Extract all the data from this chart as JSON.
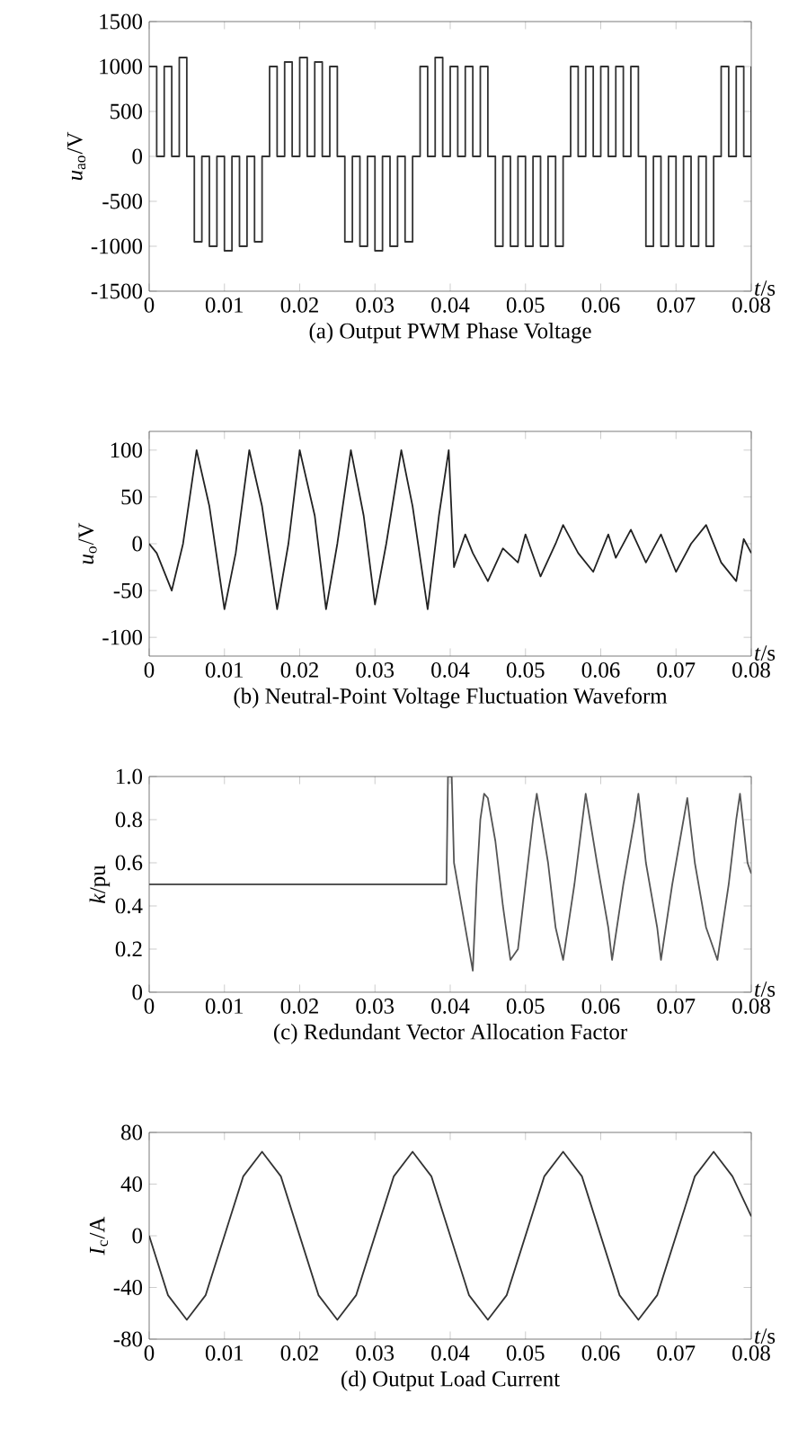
{
  "chart_data": [
    {
      "type": "step",
      "title": "(a) Output PWM Phase Voltage",
      "xlabel": "*t*/s",
      "ylabel": "*u*$_{ao}$/V",
      "color": "#333333",
      "marker": "none",
      "line_style": "solid",
      "xlim": [
        0,
        0.08
      ],
      "ylim": [
        -1500,
        1500
      ],
      "xticks": [
        0,
        0.01,
        0.02,
        0.03,
        0.04,
        0.05,
        0.06,
        0.07,
        0.08
      ],
      "yticks": [
        -1500,
        -1000,
        -500,
        0,
        500,
        1000,
        1500
      ],
      "x": [
        0,
        0.001,
        0.002,
        0.003,
        0.004,
        0.005,
        0.006,
        0.007,
        0.008,
        0.009,
        0.01,
        0.011,
        0.012,
        0.013,
        0.014,
        0.015,
        0.016,
        0.017,
        0.018,
        0.019,
        0.02,
        0.021,
        0.022,
        0.023,
        0.024,
        0.025,
        0.026,
        0.027,
        0.028,
        0.029,
        0.03,
        0.031,
        0.032,
        0.033,
        0.034,
        0.035,
        0.036,
        0.037,
        0.038,
        0.039,
        0.04,
        0.041,
        0.042,
        0.043,
        0.044,
        0.045,
        0.046,
        0.047,
        0.048,
        0.049,
        0.05,
        0.051,
        0.052,
        0.053,
        0.054,
        0.055,
        0.056,
        0.057,
        0.058,
        0.059,
        0.06,
        0.061,
        0.062,
        0.063,
        0.064,
        0.065,
        0.066,
        0.067,
        0.068,
        0.069,
        0.07,
        0.071,
        0.072,
        0.073,
        0.074,
        0.075,
        0.076,
        0.077,
        0.078,
        0.079,
        0.08
      ],
      "values": [
        1000,
        0,
        1000,
        0,
        1100,
        0,
        -950,
        0,
        -1000,
        0,
        -1050,
        0,
        -1000,
        0,
        -950,
        0,
        1000,
        0,
        1050,
        0,
        1100,
        0,
        1050,
        0,
        1000,
        0,
        -950,
        0,
        -1000,
        0,
        -1050,
        0,
        -1000,
        0,
        -950,
        0,
        1000,
        0,
        1100,
        0,
        1000,
        0,
        1000,
        0,
        1000,
        0,
        -1000,
        0,
        -1000,
        0,
        -1000,
        0,
        -1000,
        0,
        -1000,
        0,
        1000,
        0,
        1000,
        0,
        1000,
        0,
        1000,
        0,
        1000,
        0,
        -1000,
        0,
        -1000,
        0,
        -1000,
        0,
        -1000,
        0,
        -1000,
        0,
        1000,
        0,
        1000,
        0,
        1000
      ]
    },
    {
      "type": "line",
      "title": "(b) Neutral-Point Voltage Fluctuation Waveform",
      "xlabel": "*t*/s",
      "ylabel": "*u*$_{o}$/V",
      "color": "#222222",
      "marker": "none",
      "line_style": "solid",
      "xlim": [
        0,
        0.08
      ],
      "ylim": [
        -120,
        120
      ],
      "xticks": [
        0,
        0.01,
        0.02,
        0.03,
        0.04,
        0.05,
        0.06,
        0.07,
        0.08
      ],
      "yticks": [
        -100,
        -50,
        0,
        50,
        100
      ],
      "x": [
        0,
        0.001,
        0.003,
        0.0045,
        0.0063,
        0.008,
        0.01,
        0.0115,
        0.0133,
        0.015,
        0.017,
        0.0185,
        0.02,
        0.022,
        0.0235,
        0.025,
        0.0268,
        0.0285,
        0.03,
        0.0315,
        0.0335,
        0.035,
        0.037,
        0.0385,
        0.0398,
        0.0405,
        0.042,
        0.043,
        0.045,
        0.047,
        0.049,
        0.05,
        0.052,
        0.054,
        0.055,
        0.057,
        0.059,
        0.061,
        0.062,
        0.064,
        0.066,
        0.068,
        0.07,
        0.072,
        0.074,
        0.076,
        0.078,
        0.079,
        0.08
      ],
      "values": [
        0,
        -10,
        -50,
        0,
        100,
        40,
        -70,
        -10,
        100,
        40,
        -70,
        0,
        100,
        30,
        -70,
        0,
        100,
        30,
        -65,
        0,
        100,
        40,
        -70,
        30,
        100,
        -25,
        10,
        -10,
        -40,
        -5,
        -20,
        10,
        -35,
        0,
        20,
        -10,
        -30,
        10,
        -15,
        15,
        -20,
        10,
        -30,
        0,
        20,
        -20,
        -40,
        5,
        -10
      ]
    },
    {
      "type": "line",
      "title": "(c) Redundant Vector Allocation Factor",
      "xlabel": "*t*/s",
      "ylabel": "*k*/pu",
      "color": "#555555",
      "marker": "none",
      "line_style": "solid",
      "xlim": [
        0,
        0.08
      ],
      "ylim": [
        0,
        1
      ],
      "xticks": [
        0,
        0.01,
        0.02,
        0.03,
        0.04,
        0.05,
        0.06,
        0.07,
        0.08
      ],
      "yticks": [
        0,
        0.2,
        0.4,
        0.6,
        0.8,
        {
          "value": 1,
          "label": "1.0"
        }
      ],
      "x": [
        0,
        0.0395,
        0.0397,
        0.0402,
        0.0405,
        0.042,
        0.043,
        0.0435,
        0.044,
        0.0445,
        0.045,
        0.046,
        0.047,
        0.048,
        0.049,
        0.05,
        0.051,
        0.0515,
        0.053,
        0.054,
        0.055,
        0.0565,
        0.058,
        0.0595,
        0.061,
        0.0615,
        0.063,
        0.0645,
        0.065,
        0.066,
        0.0675,
        0.068,
        0.0695,
        0.071,
        0.0715,
        0.0725,
        0.074,
        0.0755,
        0.077,
        0.078,
        0.0785,
        0.0795,
        0.08
      ],
      "values": [
        0.5,
        0.5,
        1.0,
        1.0,
        0.6,
        0.3,
        0.1,
        0.5,
        0.8,
        0.92,
        0.9,
        0.7,
        0.4,
        0.15,
        0.2,
        0.5,
        0.8,
        0.92,
        0.6,
        0.3,
        0.15,
        0.5,
        0.92,
        0.6,
        0.3,
        0.15,
        0.5,
        0.8,
        0.92,
        0.6,
        0.3,
        0.15,
        0.5,
        0.8,
        0.9,
        0.6,
        0.3,
        0.15,
        0.5,
        0.8,
        0.92,
        0.6,
        0.55
      ]
    },
    {
      "type": "line",
      "title": "(d) Output Load Current",
      "xlabel": "*t*/s",
      "ylabel": "*I*$_{c}$/A",
      "color": "#333333",
      "marker": "none",
      "line_style": "solid",
      "xlim": [
        0,
        0.08
      ],
      "ylim": [
        -80,
        80
      ],
      "xticks": [
        0,
        0.01,
        0.02,
        0.03,
        0.04,
        0.05,
        0.06,
        0.07,
        0.08
      ],
      "yticks": [
        -80,
        -40,
        0,
        40,
        80
      ],
      "x": [
        0,
        0.0025,
        0.005,
        0.0075,
        0.01,
        0.0125,
        0.015,
        0.0175,
        0.02,
        0.0225,
        0.025,
        0.0275,
        0.03,
        0.0325,
        0.035,
        0.0375,
        0.04,
        0.0425,
        0.045,
        0.0475,
        0.05,
        0.0525,
        0.055,
        0.0575,
        0.06,
        0.0625,
        0.065,
        0.0675,
        0.07,
        0.0725,
        0.075,
        0.0775,
        0.08
      ],
      "values": [
        0,
        -46,
        -65,
        -46,
        0,
        46,
        65,
        46,
        0,
        -46,
        -65,
        -46,
        0,
        46,
        65,
        46,
        0,
        -46,
        -65,
        -46,
        0,
        46,
        65,
        46,
        0,
        -46,
        -65,
        -46,
        0,
        46,
        65,
        46,
        15
      ]
    }
  ]
}
